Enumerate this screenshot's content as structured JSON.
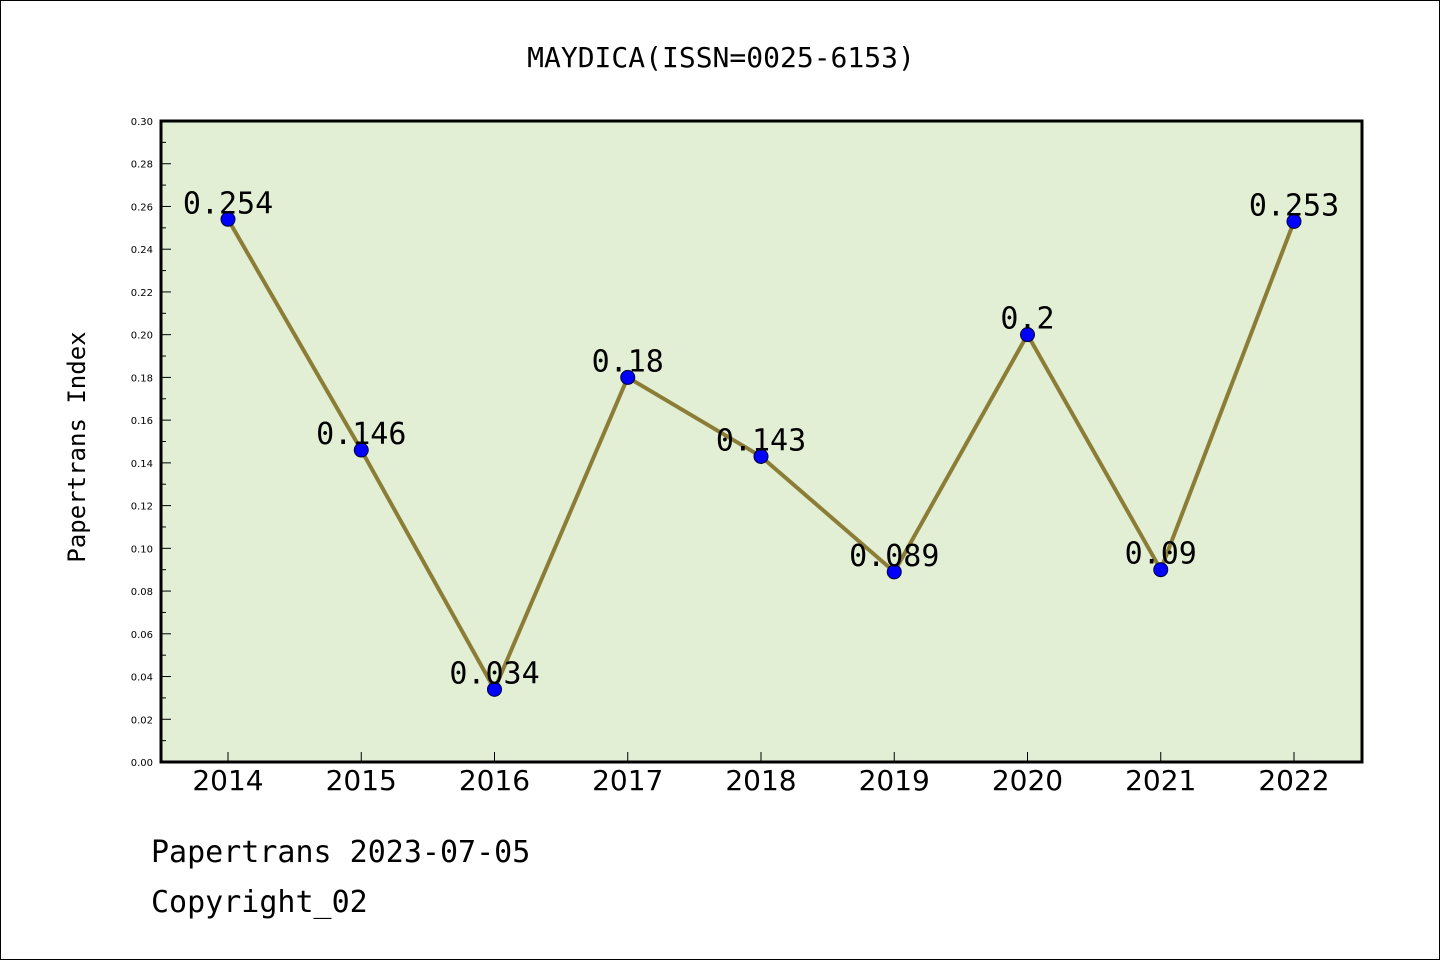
{
  "chart_data": {
    "type": "line",
    "title": "MAYDICA(ISSN=0025-6153)",
    "xlabel": "",
    "ylabel": "Papertrans Index",
    "categories": [
      "2014",
      "2015",
      "2016",
      "2017",
      "2018",
      "2019",
      "2020",
      "2021",
      "2022"
    ],
    "series": [
      {
        "values": [
          0.254,
          0.146,
          0.034,
          0.18,
          0.143,
          0.089,
          0.2,
          0.09,
          0.253
        ],
        "data_labels": [
          "0.254",
          "0.146",
          "0.034",
          "0.18",
          "0.143",
          "0.089",
          "0.2",
          "0.09",
          "0.253"
        ]
      }
    ],
    "ylim": [
      0,
      0.3
    ],
    "yticks": [
      "0.00",
      "0.02",
      "0.04",
      "0.06",
      "0.08",
      "0.10",
      "0.12",
      "0.14",
      "0.16",
      "0.18",
      "0.20",
      "0.22",
      "0.24",
      "0.26",
      "0.28",
      "0.30"
    ],
    "grid": false,
    "legend": "none",
    "colors": {
      "plot_background": "#e2efd5",
      "line": "#8b7d36",
      "marker": "#0000ff"
    }
  },
  "footer": {
    "line1": "Papertrans 2023-07-05",
    "line2": "Copyright_02"
  }
}
